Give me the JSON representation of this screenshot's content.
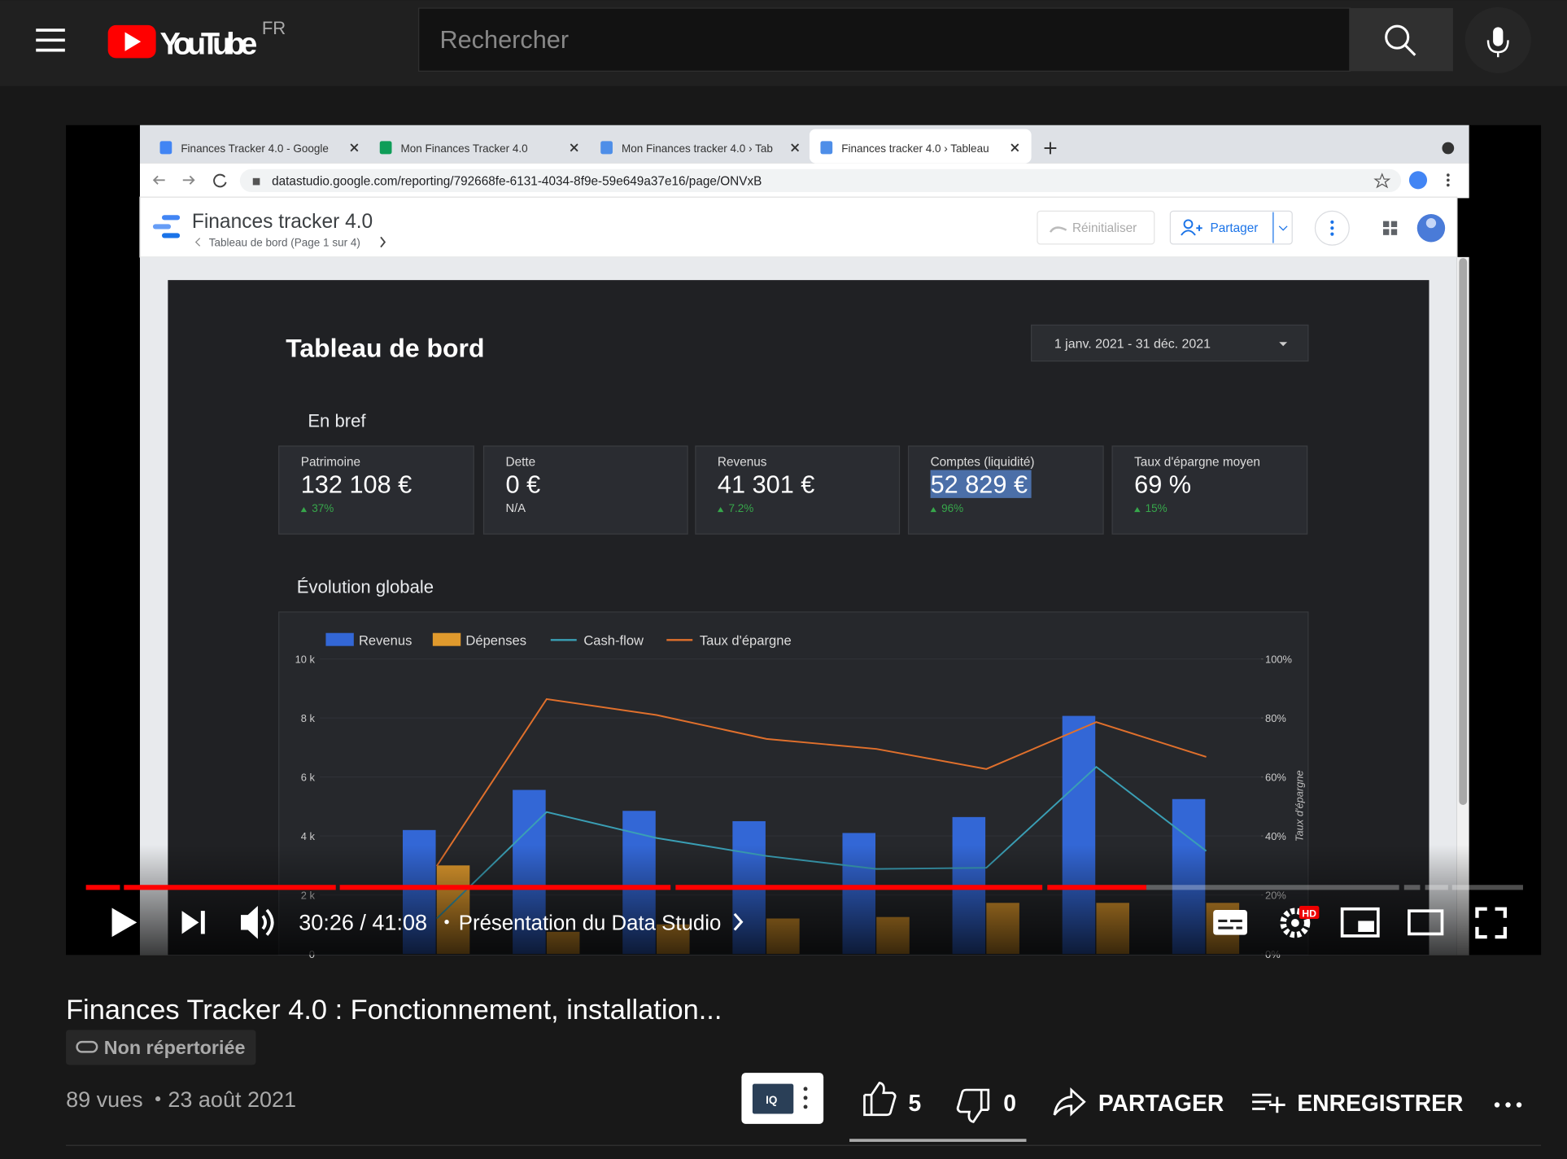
{
  "header": {
    "logo": "YouTube",
    "region": "FR",
    "search_placeholder": "Rechercher"
  },
  "browser": {
    "tabs": [
      "Finances Tracker 4.0 - Google",
      "Mon Finances Tracker 4.0",
      "Mon Finances tracker 4.0 › Tab",
      "Finances tracker 4.0 › Tableau"
    ],
    "url": "datastudio.google.com/reporting/792668fe-6131-4034-8f9e-59e649a37e16/page/ONVxB"
  },
  "report": {
    "title": "Finances tracker 4.0",
    "breadcrumb": "Tableau de bord (Page 1 sur 4)",
    "reset": "Réinitialiser",
    "share": "Partager",
    "page_title": "Tableau de bord",
    "date_range": "1 janv. 2021 - 31 déc. 2021",
    "section_summary": "En bref",
    "kpis": [
      {
        "label": "Patrimoine",
        "value": "132 108 €",
        "change": "37%"
      },
      {
        "label": "Dette",
        "value": "0 €",
        "note": "N/A"
      },
      {
        "label": "Revenus",
        "value": "41 301 €",
        "change": "7.2%"
      },
      {
        "label": "Comptes (liquidité)",
        "value": "52 829 €",
        "change": "96%"
      },
      {
        "label": "Taux d'épargne moyen",
        "value": "69 %",
        "change": "15%"
      }
    ],
    "section_chart": "Évolution globale"
  },
  "chart": {
    "type": "bar",
    "categories": [
      null,
      null,
      null,
      null,
      null,
      null,
      null,
      null
    ],
    "series": [
      {
        "name": "Revenus",
        "type": "bar",
        "color": "#3367d6",
        "values": [
          4200,
          5560,
          4850,
          4500,
          4100,
          4640,
          8070,
          5250
        ]
      },
      {
        "name": "Dépenses",
        "type": "bar",
        "color": "#e09a2d",
        "values": [
          3000,
          750,
          1000,
          1200,
          1250,
          1730,
          1730,
          1730
        ]
      },
      {
        "name": "Cash-flow",
        "type": "line",
        "color": "#3a9fb5",
        "values": [
          1200,
          4810,
          3930,
          3320,
          2880,
          2920,
          6340,
          3490
        ]
      },
      {
        "name": "Taux d'épargne",
        "type": "line",
        "axis": "y2",
        "color": "#e0702c",
        "values": [
          29.8,
          86.4,
          81,
          72.9,
          69.5,
          62.7,
          78.6,
          66.8
        ]
      }
    ],
    "ylim": [
      0,
      10000
    ],
    "yticks": [
      0,
      {
        "value": 2000,
        "label": "2 k"
      },
      {
        "value": 4000,
        "label": "4 k"
      },
      {
        "value": 6000,
        "label": "6 k"
      },
      {
        "value": 8000,
        "label": "8 k"
      },
      {
        "value": 10000,
        "label": "10 k"
      }
    ],
    "y2lim": [
      0,
      100
    ],
    "y2ticks": [
      {
        "value": 0,
        "label": "0%"
      },
      {
        "value": 20,
        "label": "20%"
      },
      {
        "value": 40,
        "label": "40%"
      },
      {
        "value": 60,
        "label": "60%"
      },
      {
        "value": 80,
        "label": "80%"
      },
      {
        "value": 100,
        "label": "100%"
      }
    ],
    "y2label": "Taux d'épargne",
    "grid": true
  },
  "player": {
    "time": "30:26 / 41:08",
    "chapter": "Présentation du Data Studio",
    "hd_badge": "HD"
  },
  "video": {
    "title": "Finances Tracker 4.0 : Fonctionnement, installation...",
    "visibility": "Non répertoriée",
    "views": "89 vues",
    "date": "23 août 2021",
    "extension": "IQ",
    "likes": "5",
    "dislikes": "0",
    "share": "PARTAGER",
    "save": "ENREGISTRER"
  }
}
